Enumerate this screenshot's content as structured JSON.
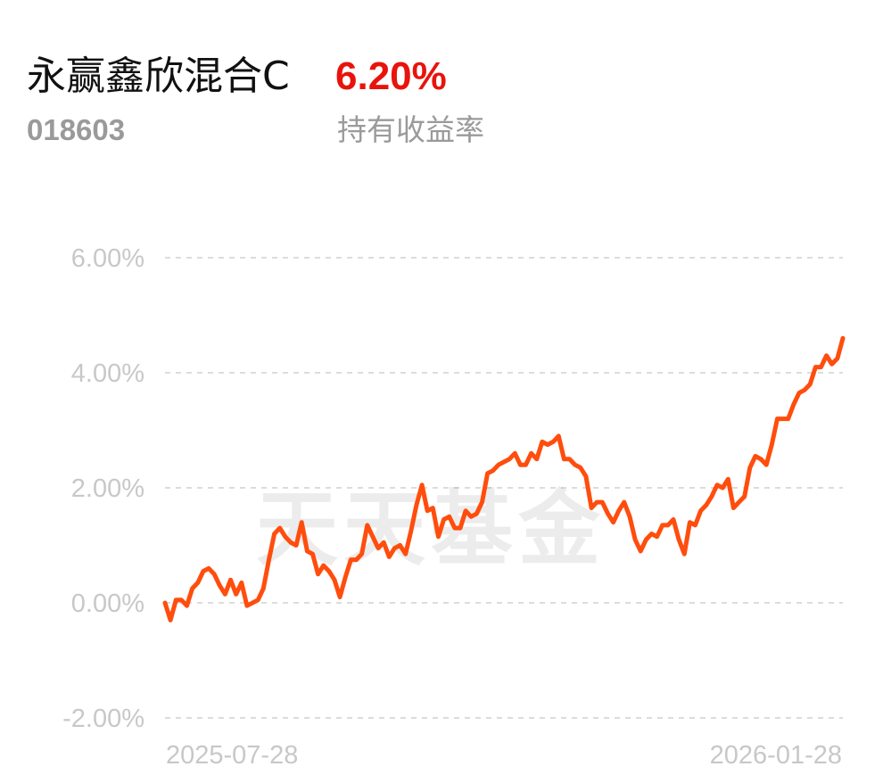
{
  "fund": {
    "name": "永赢鑫欣混合C",
    "code": "018603",
    "holding_return": "6.20%",
    "holding_return_label": "持有收益率",
    "return_color": "#e8140c"
  },
  "watermark": "天天基金",
  "chart_data": {
    "type": "line",
    "title": "",
    "xlabel": "",
    "ylabel": "",
    "ylim": [
      -2.0,
      6.0
    ],
    "y_ticks": [
      6.0,
      4.0,
      2.0,
      0.0,
      -2.0
    ],
    "y_tick_labels": [
      "6.00%",
      "4.00%",
      "2.00%",
      "0.00%",
      "-2.00%"
    ],
    "x_tick_labels": [
      "2025-07-28",
      "2026-01-28"
    ],
    "x_range": [
      "2025-07-28",
      "2026-01-28"
    ],
    "grid": true,
    "line_color": "#ff4d0d",
    "series": [
      {
        "values": [
          0.0,
          -0.3,
          0.05,
          0.05,
          -0.05,
          0.25,
          0.35,
          0.55,
          0.6,
          0.5,
          0.3,
          0.15,
          0.4,
          0.15,
          0.35,
          -0.05,
          0.0,
          0.05,
          0.25,
          0.75,
          1.2,
          1.3,
          1.15,
          1.05,
          1.0,
          1.4,
          0.9,
          0.85,
          0.5,
          0.65,
          0.55,
          0.4,
          0.1,
          0.45,
          0.75,
          0.75,
          0.85,
          1.35,
          1.15,
          0.95,
          1.05,
          0.8,
          0.95,
          1.0,
          0.85,
          1.25,
          1.7,
          2.05,
          1.6,
          1.65,
          1.15,
          1.45,
          1.5,
          1.3,
          1.3,
          1.6,
          1.5,
          1.55,
          1.75,
          2.25,
          2.3,
          2.4,
          2.45,
          2.5,
          2.6,
          2.4,
          2.4,
          2.6,
          2.5,
          2.8,
          2.75,
          2.8,
          2.9,
          2.5,
          2.5,
          2.4,
          2.35,
          2.2,
          1.65,
          1.75,
          1.75,
          1.55,
          1.4,
          1.6,
          1.75,
          1.5,
          1.1,
          0.9,
          1.1,
          1.2,
          1.15,
          1.35,
          1.35,
          1.45,
          1.1,
          0.85,
          1.4,
          1.35,
          1.6,
          1.7,
          1.85,
          2.05,
          2.0,
          2.15,
          1.65,
          1.75,
          1.85,
          2.35,
          2.55,
          2.5,
          2.4,
          2.75,
          3.2,
          3.2,
          3.2,
          3.45,
          3.65,
          3.7,
          3.8,
          4.1,
          4.1,
          4.3,
          4.15,
          4.25,
          4.6
        ]
      }
    ]
  }
}
